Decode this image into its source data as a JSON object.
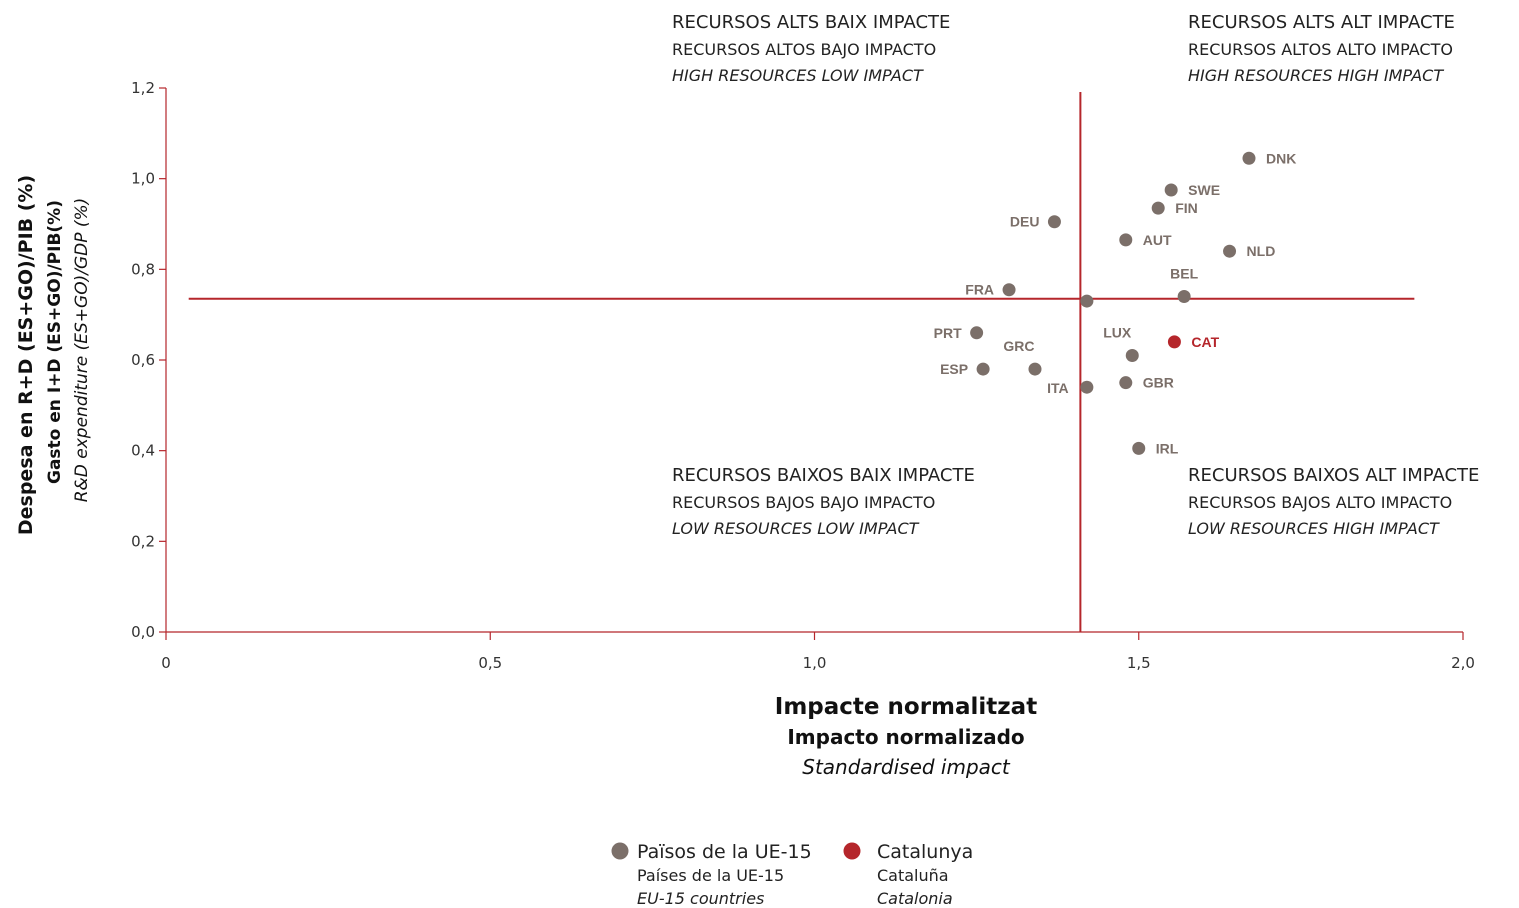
{
  "chart_data": {
    "type": "scatter",
    "xlim": [
      0,
      2.0
    ],
    "ylim": [
      0,
      1.2
    ],
    "x_ticks": [
      "0",
      "0,5",
      "1,0",
      "1,5",
      "2,0"
    ],
    "x_tick_values": [
      0,
      0.5,
      1.0,
      1.5,
      2.0
    ],
    "y_ticks": [
      "0,0",
      "0,2",
      "0,4",
      "0,6",
      "0,8",
      "1,0",
      "1,2"
    ],
    "y_tick_values": [
      0,
      0.2,
      0.4,
      0.6,
      0.8,
      1.0,
      1.2
    ],
    "xlabel": [
      "Impacte normalitzat",
      "Impacto normalizado",
      "Standardised impact"
    ],
    "ylabel": [
      "Despesa en R+D (ES+GO)/PIB (%)",
      "Gasto en I+D (ES+GO)/PIB(%)",
      "R&D expenditure (ES+GO)/GDP (%)"
    ],
    "reference_lines": {
      "x": 1.41,
      "y": 0.735
    },
    "quadrants": [
      {
        "position": "top-left",
        "lines": [
          "RECURSOS ALTS BAIX IMPACTE",
          "RECURSOS ALTOS BAJO IMPACTO",
          "HIGH RESOURCES LOW IMPACT"
        ]
      },
      {
        "position": "top-right",
        "lines": [
          "RECURSOS ALTS ALT IMPACTE",
          "RECURSOS ALTOS ALTO IMPACTO",
          "HIGH RESOURCES HIGH IMPACT"
        ]
      },
      {
        "position": "bottom-left",
        "lines": [
          "RECURSOS BAIXOS BAIX IMPACTE",
          "RECURSOS BAJOS BAJO IMPACTO",
          "LOW RESOURCES LOW IMPACT"
        ]
      },
      {
        "position": "bottom-right",
        "lines": [
          "RECURSOS BAIXOS ALT IMPACTE",
          "RECURSOS BAJOS ALTO IMPACTO",
          "LOW RESOURCES HIGH IMPACT"
        ]
      }
    ],
    "series": [
      {
        "name": "Països de la UE-15",
        "name_es": "Países de la UE-15",
        "name_en": "EU-15 countries",
        "color": "#7b6f69",
        "points": [
          {
            "label": "DNK",
            "x": 1.67,
            "y": 1.045
          },
          {
            "label": "SWE",
            "x": 1.55,
            "y": 0.975
          },
          {
            "label": "FIN",
            "x": 1.53,
            "y": 0.935
          },
          {
            "label": "DEU",
            "x": 1.37,
            "y": 0.905
          },
          {
            "label": "AUT",
            "x": 1.48,
            "y": 0.865
          },
          {
            "label": "NLD",
            "x": 1.64,
            "y": 0.84
          },
          {
            "label": "FRA",
            "x": 1.3,
            "y": 0.755
          },
          {
            "label": "BEL",
            "x": 1.57,
            "y": 0.74
          },
          {
            "label": "",
            "x": 1.42,
            "y": 0.73
          },
          {
            "label": "PRT",
            "x": 1.25,
            "y": 0.66
          },
          {
            "label": "LUX",
            "x": 1.49,
            "y": 0.61
          },
          {
            "label": "GRC",
            "x": 1.34,
            "y": 0.58
          },
          {
            "label": "ESP",
            "x": 1.26,
            "y": 0.58
          },
          {
            "label": "GBR",
            "x": 1.48,
            "y": 0.55
          },
          {
            "label": "ITA",
            "x": 1.42,
            "y": 0.54
          },
          {
            "label": "IRL",
            "x": 1.5,
            "y": 0.405
          }
        ]
      },
      {
        "name": "Catalunya",
        "name_es": "Cataluña",
        "name_en": "Catalonia",
        "color": "#b5262b",
        "points": [
          {
            "label": "CAT",
            "x": 1.555,
            "y": 0.64
          }
        ]
      }
    ]
  }
}
